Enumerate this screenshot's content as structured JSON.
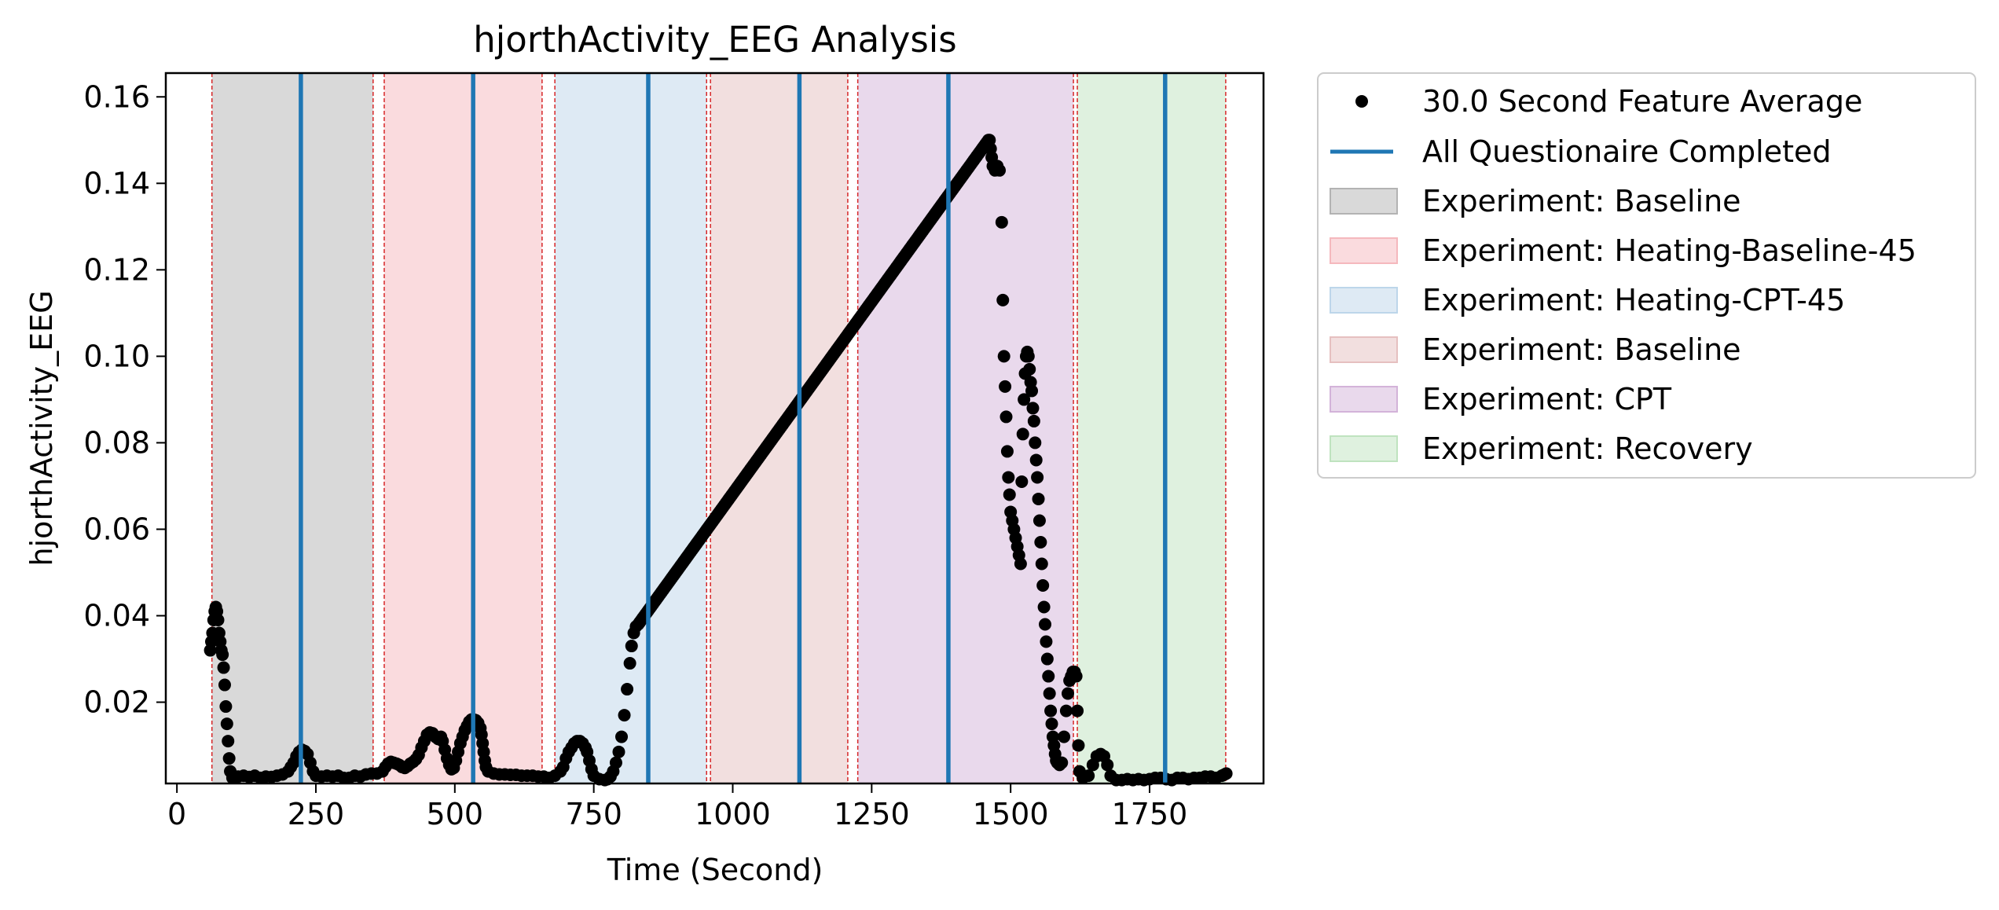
{
  "chart_data": {
    "type": "scatter",
    "title": "hjorthActivity_EEG Analysis",
    "xlabel": "Time (Second)",
    "ylabel": "hjorthActivity_EEG",
    "xlim": [
      -20,
      1955
    ],
    "ylim": [
      0.0012,
      0.1655
    ],
    "xticks": [
      0,
      250,
      500,
      750,
      1000,
      1250,
      1500,
      1750
    ],
    "xtick_labels": [
      "0",
      "250",
      "500",
      "750",
      "1000",
      "1250",
      "1500",
      "1750"
    ],
    "yticks": [
      0.02,
      0.04,
      0.06,
      0.08,
      0.1,
      0.12,
      0.14,
      0.16
    ],
    "ytick_labels": [
      "0.02",
      "0.04",
      "0.06",
      "0.08",
      "0.10",
      "0.12",
      "0.14",
      "0.16"
    ],
    "grid": false,
    "legend_position": "outside-right-top",
    "series": [
      {
        "name": "30.0 Second Feature Average",
        "kind": "points",
        "color": "#000000",
        "points": [
          [
            60,
            0.032
          ],
          [
            62,
            0.034
          ],
          [
            64,
            0.036
          ],
          [
            66,
            0.039
          ],
          [
            68,
            0.041
          ],
          [
            70,
            0.042
          ],
          [
            72,
            0.041
          ],
          [
            74,
            0.039
          ],
          [
            76,
            0.036
          ],
          [
            78,
            0.034
          ],
          [
            80,
            0.032
          ],
          [
            82,
            0.031
          ],
          [
            84,
            0.028
          ],
          [
            86,
            0.024
          ],
          [
            88,
            0.019
          ],
          [
            90,
            0.015
          ],
          [
            92,
            0.011
          ],
          [
            94,
            0.007
          ],
          [
            96,
            0.004
          ],
          [
            100,
            0.0025
          ],
          [
            110,
            0.0028
          ],
          [
            120,
            0.003
          ],
          [
            130,
            0.0027
          ],
          [
            140,
            0.003
          ],
          [
            150,
            0.0025
          ],
          [
            160,
            0.0028
          ],
          [
            170,
            0.0027
          ],
          [
            180,
            0.003
          ],
          [
            190,
            0.0033
          ],
          [
            200,
            0.004
          ],
          [
            205,
            0.005
          ],
          [
            210,
            0.006
          ],
          [
            215,
            0.0075
          ],
          [
            220,
            0.0085
          ],
          [
            225,
            0.009
          ],
          [
            230,
            0.0087
          ],
          [
            235,
            0.008
          ],
          [
            240,
            0.006
          ],
          [
            245,
            0.004
          ],
          [
            250,
            0.003
          ],
          [
            260,
            0.0028
          ],
          [
            270,
            0.003
          ],
          [
            280,
            0.0028
          ],
          [
            290,
            0.003
          ],
          [
            300,
            0.0025
          ],
          [
            310,
            0.0025
          ],
          [
            320,
            0.003
          ],
          [
            330,
            0.0028
          ],
          [
            340,
            0.0033
          ],
          [
            350,
            0.0035
          ],
          [
            360,
            0.0035
          ],
          [
            370,
            0.004
          ],
          [
            375,
            0.005
          ],
          [
            380,
            0.0058
          ],
          [
            385,
            0.0062
          ],
          [
            390,
            0.006
          ],
          [
            395,
            0.0058
          ],
          [
            400,
            0.0055
          ],
          [
            405,
            0.005
          ],
          [
            410,
            0.0048
          ],
          [
            415,
            0.0052
          ],
          [
            420,
            0.0058
          ],
          [
            425,
            0.0062
          ],
          [
            430,
            0.0068
          ],
          [
            435,
            0.0078
          ],
          [
            440,
            0.0095
          ],
          [
            445,
            0.011
          ],
          [
            450,
            0.0125
          ],
          [
            455,
            0.013
          ],
          [
            460,
            0.0128
          ],
          [
            465,
            0.012
          ],
          [
            470,
            0.0115
          ],
          [
            475,
            0.012
          ],
          [
            478,
            0.011
          ],
          [
            482,
            0.009
          ],
          [
            486,
            0.007
          ],
          [
            490,
            0.0055
          ],
          [
            494,
            0.0045
          ],
          [
            498,
            0.0048
          ],
          [
            502,
            0.0065
          ],
          [
            506,
            0.0085
          ],
          [
            510,
            0.0105
          ],
          [
            514,
            0.012
          ],
          [
            518,
            0.0135
          ],
          [
            522,
            0.0145
          ],
          [
            526,
            0.0155
          ],
          [
            530,
            0.016
          ],
          [
            534,
            0.016
          ],
          [
            538,
            0.0158
          ],
          [
            542,
            0.0152
          ],
          [
            546,
            0.014
          ],
          [
            548,
            0.0125
          ],
          [
            550,
            0.0105
          ],
          [
            552,
            0.0085
          ],
          [
            554,
            0.0065
          ],
          [
            556,
            0.005
          ],
          [
            560,
            0.004
          ],
          [
            570,
            0.0035
          ],
          [
            580,
            0.0033
          ],
          [
            590,
            0.0033
          ],
          [
            600,
            0.0032
          ],
          [
            610,
            0.0032
          ],
          [
            620,
            0.003
          ],
          [
            630,
            0.003
          ],
          [
            640,
            0.003
          ],
          [
            650,
            0.0028
          ],
          [
            660,
            0.0028
          ],
          [
            670,
            0.0025
          ],
          [
            680,
            0.003
          ],
          [
            690,
            0.004
          ],
          [
            695,
            0.005
          ],
          [
            700,
            0.007
          ],
          [
            705,
            0.0085
          ],
          [
            710,
            0.0095
          ],
          [
            715,
            0.0105
          ],
          [
            720,
            0.011
          ],
          [
            725,
            0.011
          ],
          [
            730,
            0.0105
          ],
          [
            735,
            0.0095
          ],
          [
            738,
            0.0085
          ],
          [
            742,
            0.0065
          ],
          [
            746,
            0.0045
          ],
          [
            750,
            0.003
          ],
          [
            760,
            0.0022
          ],
          [
            770,
            0.002
          ],
          [
            775,
            0.0022
          ],
          [
            780,
            0.0028
          ],
          [
            785,
            0.004
          ],
          [
            790,
            0.006
          ],
          [
            795,
            0.0085
          ],
          [
            800,
            0.012
          ],
          [
            805,
            0.017
          ],
          [
            810,
            0.023
          ],
          [
            815,
            0.029
          ],
          [
            818,
            0.033
          ],
          [
            822,
            0.036
          ],
          [
            826,
            0.0375
          ],
          [
            830,
            0.038
          ]
        ],
        "ramp": {
          "x": [
            830,
            1460
          ],
          "y": [
            0.038,
            0.15
          ]
        },
        "tail_points": [
          [
            1462,
            0.15
          ],
          [
            1464,
            0.148
          ],
          [
            1466,
            0.146
          ],
          [
            1468,
            0.144
          ],
          [
            1472,
            0.143
          ],
          [
            1476,
            0.144
          ],
          [
            1480,
            0.143
          ],
          [
            1484,
            0.131
          ],
          [
            1486,
            0.113
          ],
          [
            1488,
            0.1
          ],
          [
            1490,
            0.093
          ],
          [
            1492,
            0.086
          ],
          [
            1494,
            0.078
          ],
          [
            1496,
            0.072
          ],
          [
            1498,
            0.068
          ],
          [
            1500,
            0.064
          ],
          [
            1503,
            0.062
          ],
          [
            1506,
            0.06
          ],
          [
            1509,
            0.058
          ],
          [
            1512,
            0.056
          ],
          [
            1515,
            0.054
          ],
          [
            1518,
            0.052
          ],
          [
            1520,
            0.071
          ],
          [
            1522,
            0.082
          ],
          [
            1524,
            0.09
          ],
          [
            1526,
            0.096
          ],
          [
            1528,
            0.1
          ],
          [
            1530,
            0.101
          ],
          [
            1532,
            0.1
          ],
          [
            1534,
            0.097
          ],
          [
            1536,
            0.094
          ],
          [
            1538,
            0.092
          ],
          [
            1540,
            0.088
          ],
          [
            1542,
            0.085
          ],
          [
            1544,
            0.08
          ],
          [
            1546,
            0.076
          ],
          [
            1548,
            0.072
          ],
          [
            1550,
            0.067
          ],
          [
            1552,
            0.062
          ],
          [
            1554,
            0.057
          ],
          [
            1556,
            0.052
          ],
          [
            1558,
            0.047
          ],
          [
            1560,
            0.042
          ],
          [
            1562,
            0.038
          ],
          [
            1564,
            0.034
          ],
          [
            1566,
            0.03
          ],
          [
            1568,
            0.026
          ],
          [
            1570,
            0.022
          ],
          [
            1572,
            0.018
          ],
          [
            1574,
            0.015
          ],
          [
            1576,
            0.012
          ],
          [
            1578,
            0.01
          ],
          [
            1580,
            0.008
          ],
          [
            1582,
            0.0065
          ],
          [
            1584,
            0.006
          ],
          [
            1588,
            0.0055
          ],
          [
            1592,
            0.006
          ],
          [
            1596,
            0.012
          ],
          [
            1600,
            0.018
          ],
          [
            1603,
            0.022
          ],
          [
            1606,
            0.025
          ],
          [
            1609,
            0.026
          ],
          [
            1612,
            0.027
          ],
          [
            1615,
            0.027
          ],
          [
            1618,
            0.026
          ],
          [
            1620,
            0.018
          ],
          [
            1622,
            0.01
          ],
          [
            1624,
            0.004
          ],
          [
            1630,
            0.0025
          ],
          [
            1640,
            0.003
          ],
          [
            1648,
            0.0055
          ],
          [
            1655,
            0.0075
          ],
          [
            1662,
            0.008
          ],
          [
            1668,
            0.0075
          ],
          [
            1674,
            0.0055
          ],
          [
            1680,
            0.003
          ],
          [
            1690,
            0.002
          ],
          [
            1700,
            0.002
          ],
          [
            1710,
            0.0022
          ],
          [
            1720,
            0.002
          ],
          [
            1730,
            0.0022
          ],
          [
            1740,
            0.002
          ],
          [
            1750,
            0.0022
          ],
          [
            1760,
            0.0025
          ],
          [
            1770,
            0.0025
          ],
          [
            1780,
            0.0022
          ],
          [
            1790,
            0.002
          ],
          [
            1800,
            0.0025
          ],
          [
            1810,
            0.0025
          ],
          [
            1820,
            0.0022
          ],
          [
            1830,
            0.0025
          ],
          [
            1840,
            0.0025
          ],
          [
            1850,
            0.0028
          ],
          [
            1860,
            0.0028
          ],
          [
            1870,
            0.0025
          ],
          [
            1880,
            0.003
          ],
          [
            1885,
            0.0033
          ],
          [
            1888,
            0.0035
          ]
        ]
      },
      {
        "name": "All Questionaire Completed",
        "kind": "vlines",
        "color": "#1f77b4",
        "x": [
          223,
          533,
          848,
          1120,
          1388,
          1778
        ]
      }
    ],
    "spans": [
      {
        "label": "Experiment: Baseline",
        "x": [
          63,
          353
        ],
        "color": "#b3b3b3"
      },
      {
        "label": "Experiment: Heating-Baseline-45",
        "x": [
          373,
          657
        ],
        "color": "#f5b8bd"
      },
      {
        "label": "Experiment: Heating-CPT-45",
        "x": [
          680,
          953
        ],
        "color": "#bdd6ea"
      },
      {
        "label": "Experiment: Baseline",
        "x": [
          960,
          1207
        ],
        "color": "#e6c0c0"
      },
      {
        "label": "Experiment: CPT",
        "x": [
          1225,
          1613
        ],
        "color": "#d3b3d9"
      },
      {
        "label": "Experiment: Recovery",
        "x": [
          1620,
          1887
        ],
        "color": "#bfe3bf"
      }
    ],
    "span_edge_color": "#d62728"
  }
}
